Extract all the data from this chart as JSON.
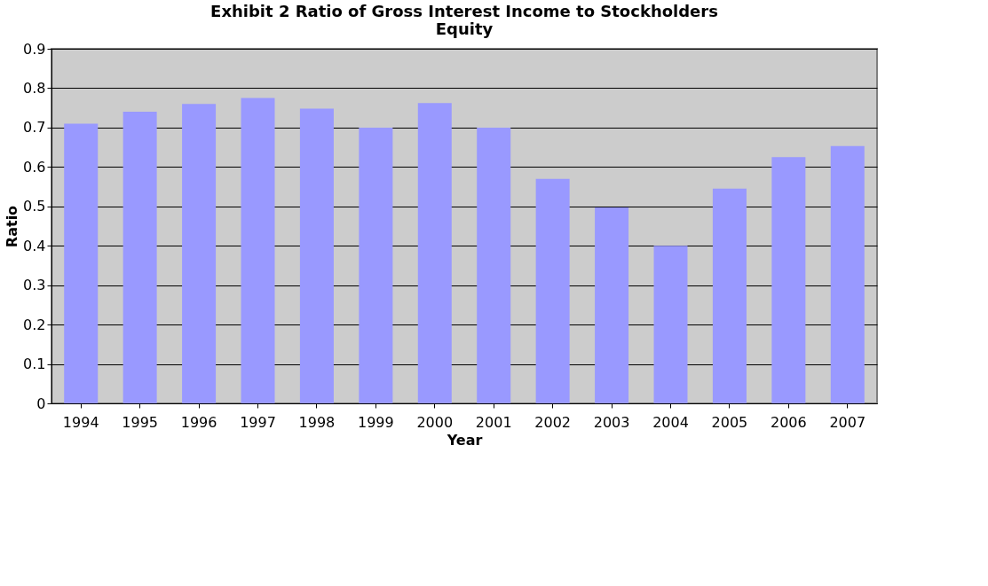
{
  "chart_data": {
    "type": "bar",
    "title": [
      "Exhibit 2 Ratio of Gross Interest Income to Stockholders",
      "Equity"
    ],
    "xlabel": "Year",
    "ylabel": "Ratio",
    "categories": [
      "1994",
      "1995",
      "1996",
      "1997",
      "1998",
      "1999",
      "2000",
      "2001",
      "2002",
      "2003",
      "2004",
      "2005",
      "2006",
      "2007"
    ],
    "values": [
      0.71,
      0.74,
      0.76,
      0.775,
      0.748,
      0.7,
      0.762,
      0.7,
      0.57,
      0.497,
      0.4,
      0.545,
      0.625,
      0.653
    ],
    "color": "#9999ff",
    "ylim": [
      0,
      0.9
    ],
    "yticks": [
      0,
      0.1,
      0.2,
      0.3,
      0.4,
      0.5,
      0.6,
      0.7,
      0.8,
      0.9
    ],
    "grid": "y"
  }
}
